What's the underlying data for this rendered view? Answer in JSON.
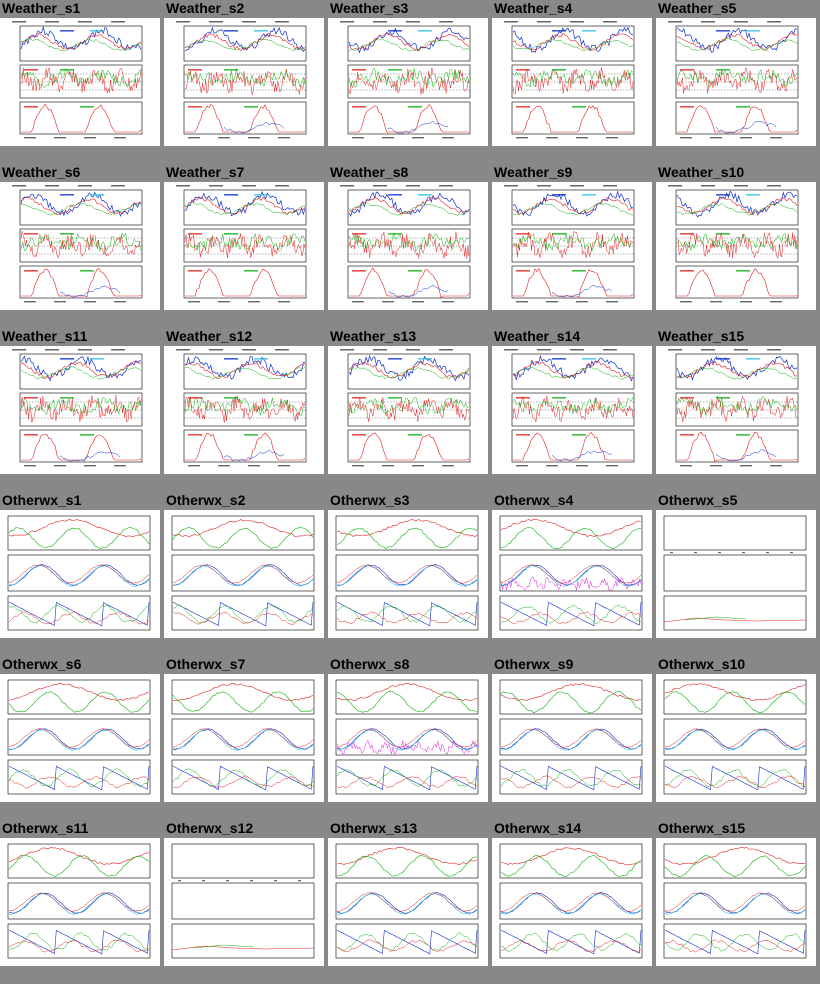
{
  "page_background": "#888888",
  "colors": {
    "red": "#e02020",
    "green": "#10b010",
    "blue": "#1030d0",
    "cyan": "#30c0e0",
    "magenta": "#e020e0",
    "frame": "#000000",
    "text": "#000000"
  },
  "thumbnails": [
    {
      "label": "Weather_s1",
      "kind": "weather"
    },
    {
      "label": "Weather_s2",
      "kind": "weather"
    },
    {
      "label": "Weather_s3",
      "kind": "weather"
    },
    {
      "label": "Weather_s4",
      "kind": "weather"
    },
    {
      "label": "Weather_s5",
      "kind": "weather"
    },
    {
      "label": "Weather_s6",
      "kind": "weather"
    },
    {
      "label": "Weather_s7",
      "kind": "weather"
    },
    {
      "label": "Weather_s8",
      "kind": "weather"
    },
    {
      "label": "Weather_s9",
      "kind": "weather"
    },
    {
      "label": "Weather_s10",
      "kind": "weather"
    },
    {
      "label": "Weather_s11",
      "kind": "weather"
    },
    {
      "label": "Weather_s12",
      "kind": "weather"
    },
    {
      "label": "Weather_s13",
      "kind": "weather"
    },
    {
      "label": "Weather_s14",
      "kind": "weather"
    },
    {
      "label": "Weather_s15",
      "kind": "weather"
    },
    {
      "label": "Otherwx_s1",
      "kind": "otherwx"
    },
    {
      "label": "Otherwx_s2",
      "kind": "otherwx"
    },
    {
      "label": "Otherwx_s3",
      "kind": "otherwx"
    },
    {
      "label": "Otherwx_s4",
      "kind": "otherwx"
    },
    {
      "label": "Otherwx_s5",
      "kind": "otherwx-empty"
    },
    {
      "label": "Otherwx_s6",
      "kind": "otherwx"
    },
    {
      "label": "Otherwx_s7",
      "kind": "otherwx"
    },
    {
      "label": "Otherwx_s8",
      "kind": "otherwx"
    },
    {
      "label": "Otherwx_s9",
      "kind": "otherwx"
    },
    {
      "label": "Otherwx_s10",
      "kind": "otherwx"
    },
    {
      "label": "Otherwx_s11",
      "kind": "otherwx"
    },
    {
      "label": "Otherwx_s12",
      "kind": "otherwx-empty"
    },
    {
      "label": "Otherwx_s13",
      "kind": "otherwx"
    },
    {
      "label": "Otherwx_s14",
      "kind": "otherwx"
    },
    {
      "label": "Otherwx_s15",
      "kind": "otherwx"
    }
  ]
}
